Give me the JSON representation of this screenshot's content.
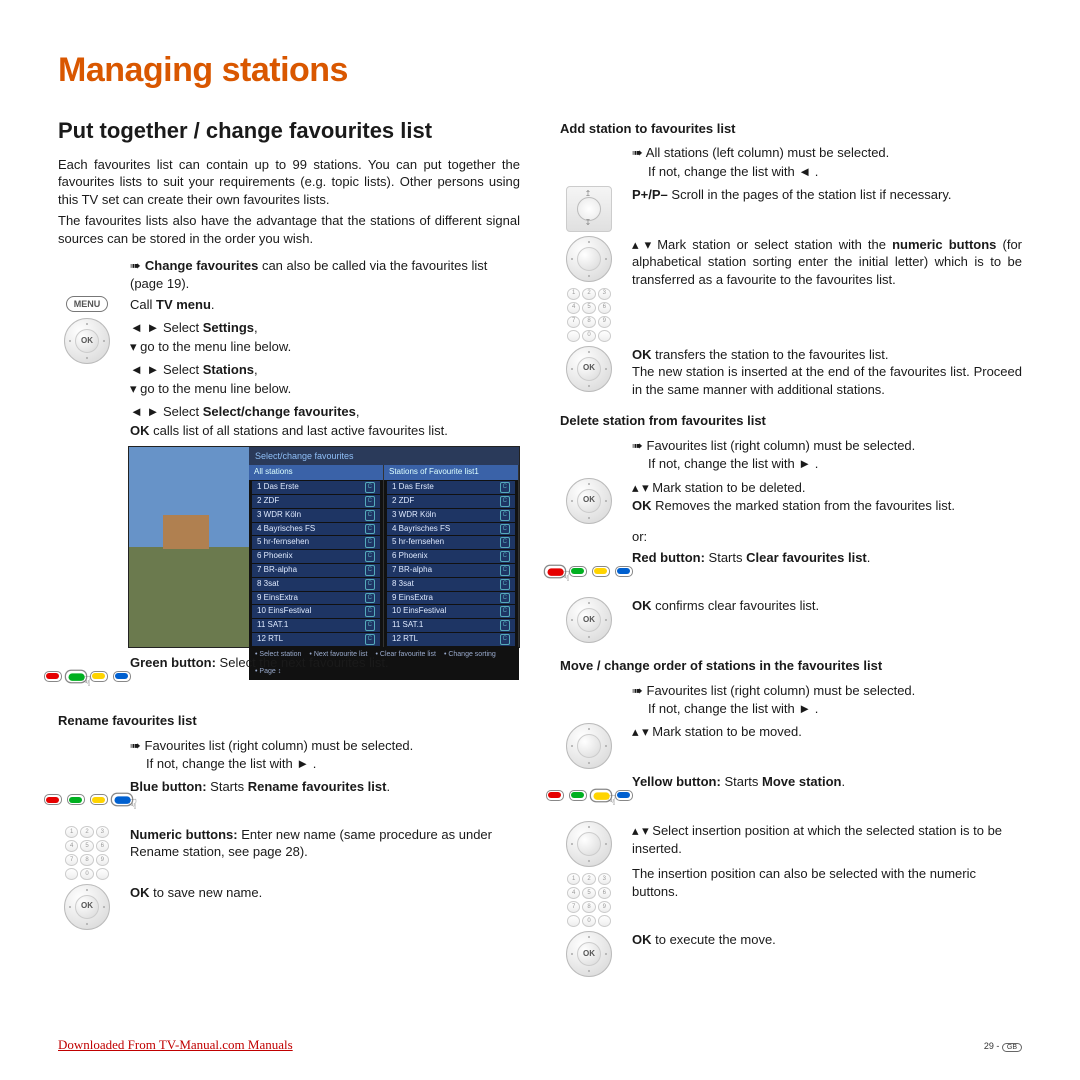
{
  "page": {
    "title": "Managing stations",
    "footer_link": "Downloaded From TV-Manual.com Manuals",
    "page_number": "29 - ",
    "region_code": "GB"
  },
  "left": {
    "section_title": "Put together / change favourites list",
    "intro_p1": "Each favourites list can contain up to 99 stations. You can put together the favourites lists to suit your requirements (e.g. topic lists). Other persons using this TV set can create their own favourites lists.",
    "intro_p2": "The favourites lists also have the advantage that the stations of different signal sources can be stored in the order you wish.",
    "hint_change": {
      "bold": "Change favourites",
      "rest": " can also be called via the favourites list (page 19)."
    },
    "menu_label": "MENU",
    "call_tv_menu": {
      "text": "Call ",
      "bold": "TV menu",
      "end": "."
    },
    "sel_settings": {
      "pre": "◄ ► Select ",
      "bold": "Settings",
      "end": ","
    },
    "goto_line": "▾  go to the menu line below.",
    "sel_stations": {
      "pre": "◄ ► Select ",
      "bold": "Stations",
      "end": ","
    },
    "sel_select_change": {
      "pre": "◄ ► Select ",
      "bold": "Select/change favourites",
      "end": ","
    },
    "ok_calls": {
      "bold": "OK",
      "rest": "  calls list of all stations and last active favourites list."
    },
    "screenshot": {
      "title": "Select/change favourites",
      "list_a_title": "All stations",
      "list_b_title": "Stations of Favourite list1",
      "stations": [
        "1  Das Erste",
        "2  ZDF",
        "3  WDR Köln",
        "4  Bayrisches FS",
        "5  hr-fernsehen",
        "6  Phoenix",
        "7  BR-alpha",
        "8  3sat",
        "9  EinsExtra",
        "10 EinsFestival",
        "11 SAT.1",
        "12 RTL"
      ],
      "footer": [
        "Select station",
        "Next favourite list",
        "Clear favourite list",
        "Change sorting",
        "Page ↕"
      ]
    },
    "green_btn": {
      "bold": "Green button:",
      "rest": " Select the next favourites list."
    },
    "rename_title": "Rename favourites list",
    "rename_hint": {
      "line1": "➠ Favourites list (right column) must be selected.",
      "line2": "If not, change the list with  ► ."
    },
    "blue_btn": {
      "bold": "Blue button:",
      "rest": " Starts ",
      "bold2": "Rename favourites list",
      "end": "."
    },
    "numeric": {
      "bold": "Numeric buttons:",
      "rest": " Enter new name (same procedure as under Rename station, see page 28)."
    },
    "ok_save": {
      "bold": "OK",
      "rest": "  to save new name."
    }
  },
  "right": {
    "add_title": "Add station to favourites list",
    "add_hint": {
      "line1": "➠ All stations (left column) must be selected.",
      "line2": "If not, change the list with  ◄ ."
    },
    "ppp": {
      "bold": "P+/P–",
      "rest": " Scroll in the pages of the station list if necessary."
    },
    "mark_numeric": {
      "pre": "▴ ▾ Mark station or select station with the ",
      "bold": "numeric buttons",
      "rest": " (for alphabetical station sorting enter the initial letter) which is to be transferred as a favourite to the favourites list."
    },
    "ok_transfer": {
      "bold": "OK",
      "rest": " transfers the station to the favourites list.",
      "note": "The new station is inserted at the end of the favourites list. Proceed in the same manner with additional stations."
    },
    "del_title": "Delete station from favourites list",
    "del_hint": {
      "line1": "➠ Favourites list (right column) must be selected.",
      "line2": "If not, change the list with  ► ."
    },
    "mark_delete": "▴ ▾ Mark station to be deleted.",
    "ok_removes": {
      "bold": "OK",
      "rest": " Removes the marked station from the favourites list."
    },
    "or": "or:",
    "red_btn": {
      "bold": "Red button:",
      "rest": " Starts ",
      "bold2": "Clear favourites list",
      "end": "."
    },
    "ok_confirms": {
      "bold": "OK",
      "rest": "  confirms clear favourites list."
    },
    "move_title": "Move / change order of stations in the favourites list",
    "move_hint": {
      "line1": "➠ Favourites list (right column) must be selected.",
      "line2": "If not, change the list with  ► ."
    },
    "mark_move": "▴ ▾ Mark station to be moved.",
    "yellow_btn": {
      "bold": "Yellow button:",
      "rest": " Starts ",
      "bold2": "Move station",
      "end": "."
    },
    "select_insert": "▴ ▾ Select insertion position at which the selected station is to be inserted.",
    "insert_numeric": "The insertion position can also be selected with the numeric buttons.",
    "ok_execute": {
      "bold": "OK",
      "rest": "  to execute the move."
    }
  }
}
